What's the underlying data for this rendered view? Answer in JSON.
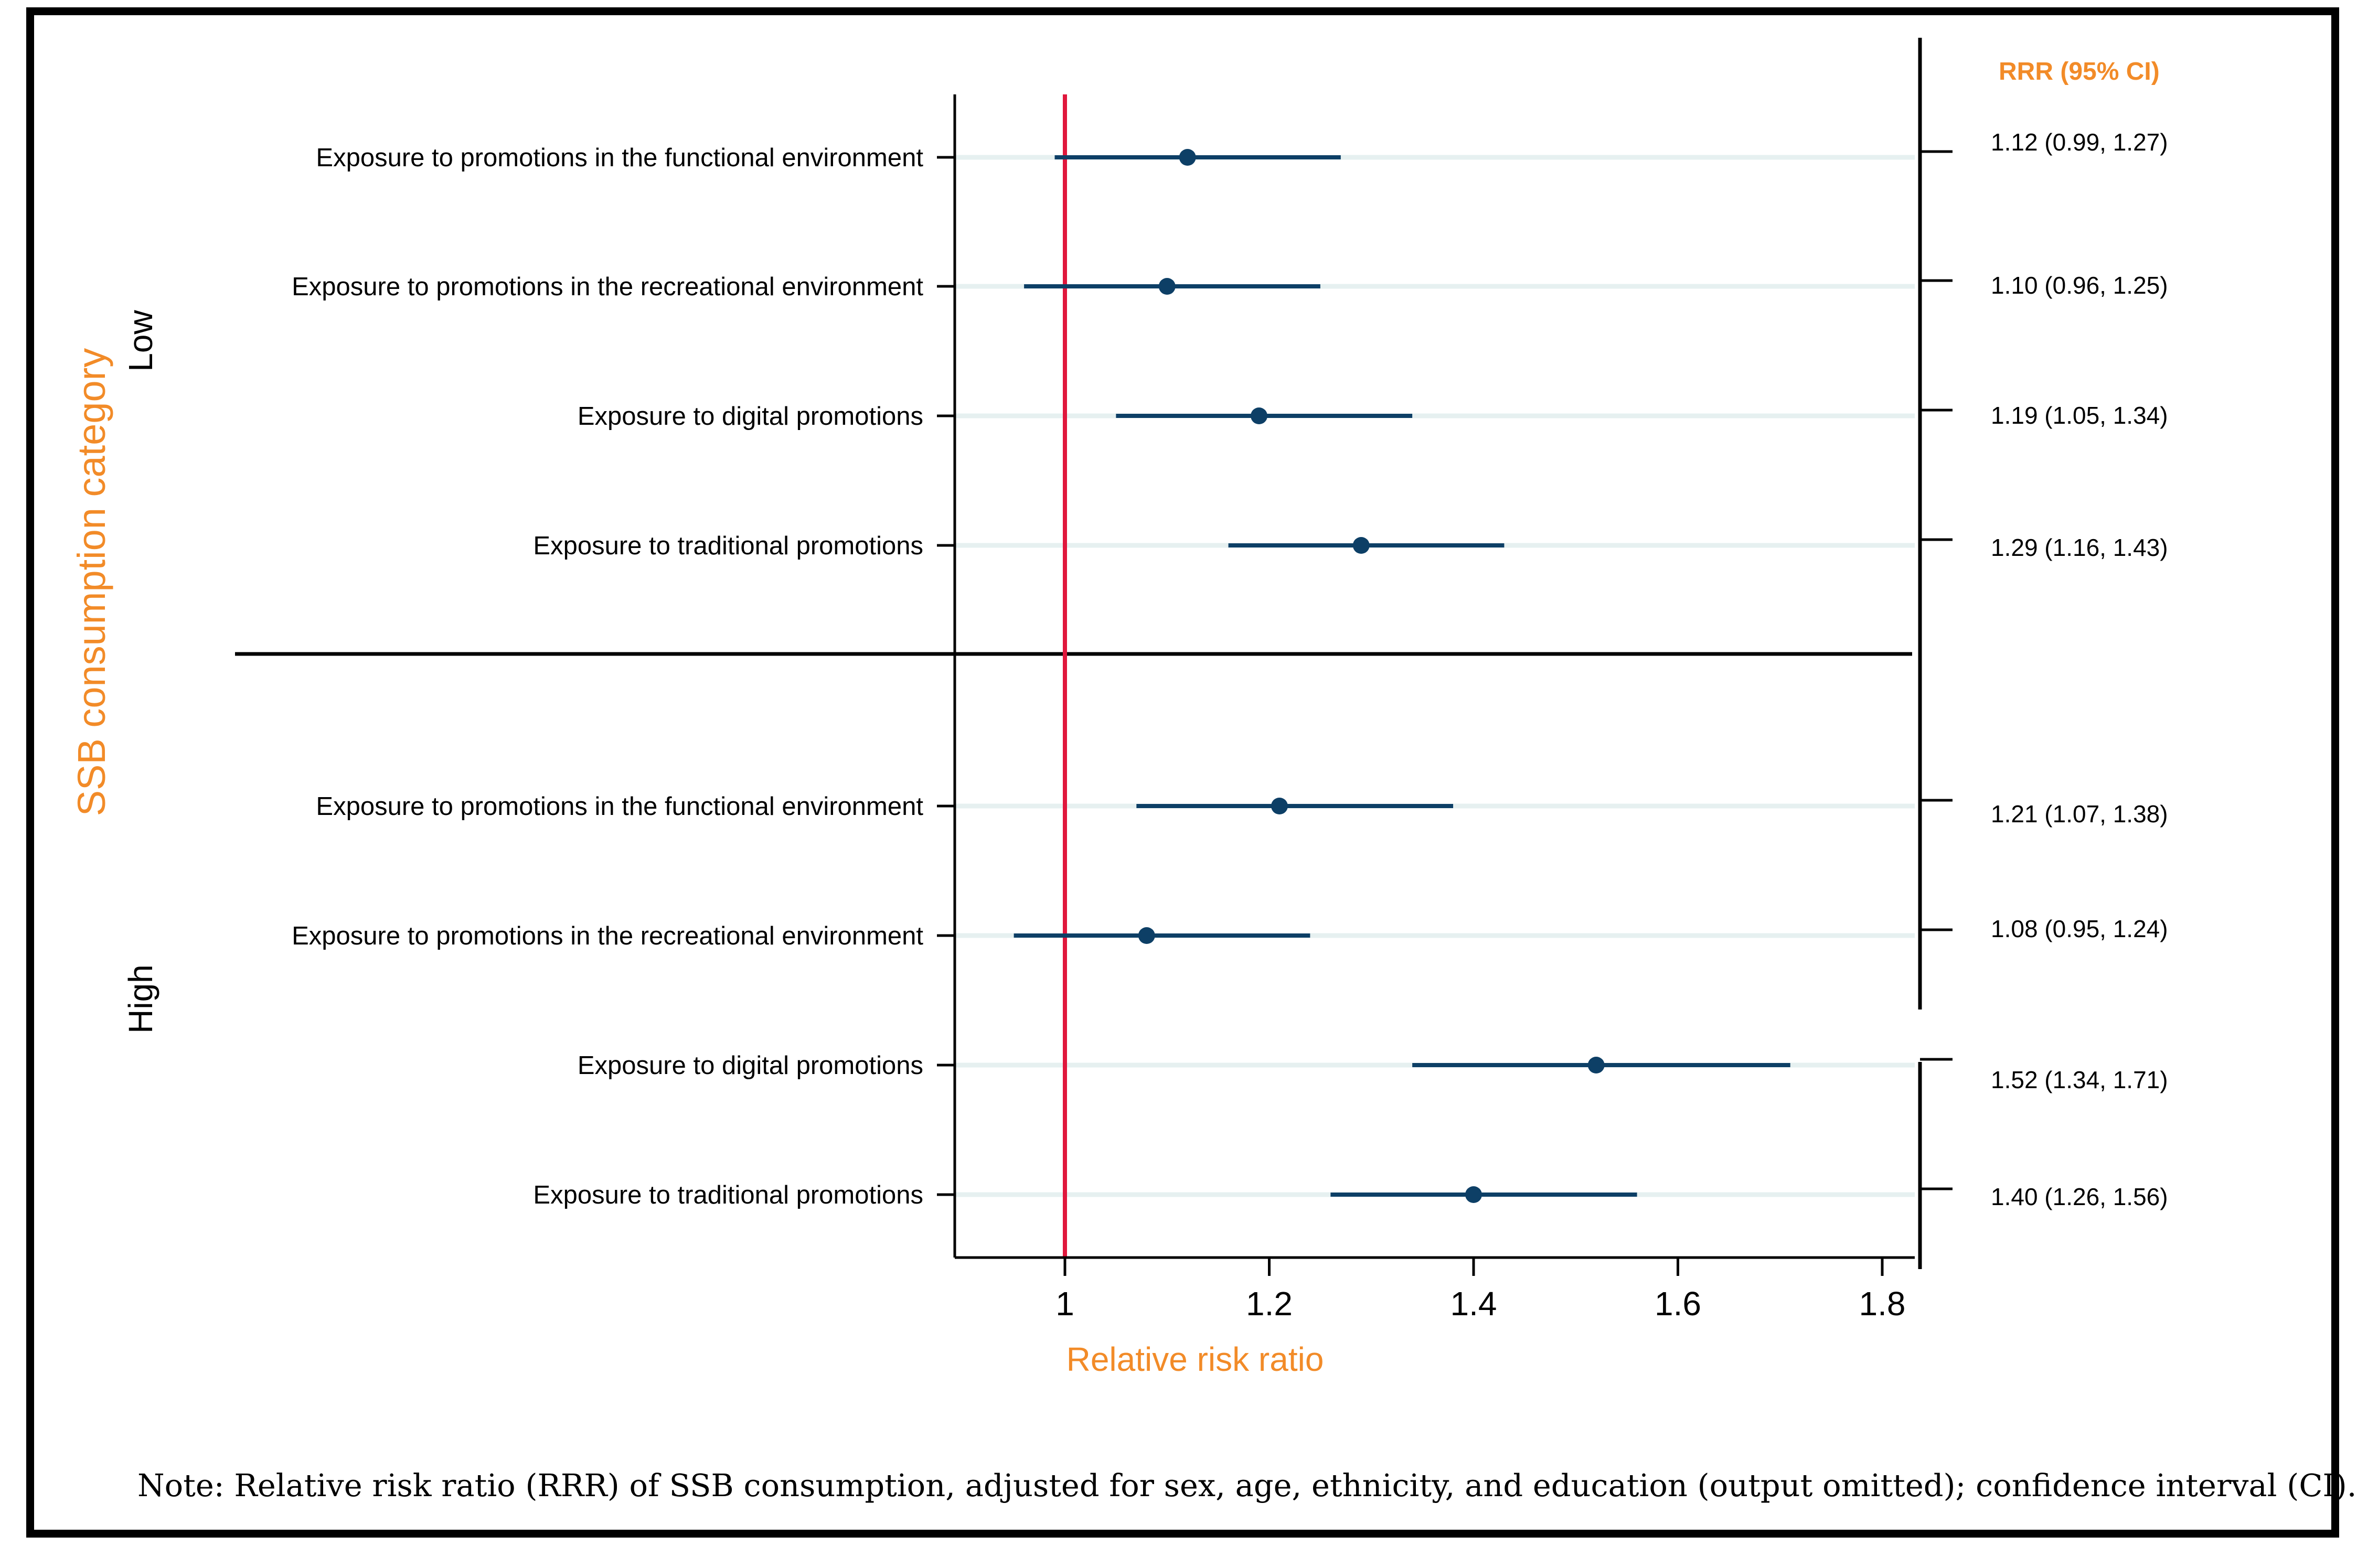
{
  "chart_data": {
    "type": "forest",
    "title": "",
    "xlabel": "Relative risk ratio",
    "ylabel": "SSB consumption category",
    "xlim": [
      0.915,
      1.83
    ],
    "xticks": [
      1,
      1.2,
      1.4,
      1.6,
      1.8
    ],
    "xtick_labels": [
      "1",
      "1.2",
      "1.4",
      "1.6",
      "1.8"
    ],
    "reference_line": 1,
    "right_column_header": "RRR (95% CI)",
    "groups": [
      {
        "name": "Low",
        "rows": [
          {
            "label": "Exposure to promotions in the functional environment",
            "rrr": 1.12,
            "lo": 0.99,
            "hi": 1.27,
            "text": "1.12 (0.99, 1.27)"
          },
          {
            "label": "Exposure to promotions in the recreational environment",
            "rrr": 1.1,
            "lo": 0.96,
            "hi": 1.25,
            "text": "1.10 (0.96, 1.25)"
          },
          {
            "label": "Exposure to digital promotions",
            "rrr": 1.19,
            "lo": 1.05,
            "hi": 1.34,
            "text": "1.19 (1.05, 1.34)"
          },
          {
            "label": "Exposure to traditional promotions",
            "rrr": 1.29,
            "lo": 1.16,
            "hi": 1.43,
            "text": "1.29 (1.16, 1.43)"
          }
        ]
      },
      {
        "name": "High",
        "rows": [
          {
            "label": "Exposure to promotions in the functional environment",
            "rrr": 1.21,
            "lo": 1.07,
            "hi": 1.38,
            "text": "1.21 (1.07, 1.38)"
          },
          {
            "label": "Exposure to promotions in the recreational environment",
            "rrr": 1.08,
            "lo": 0.95,
            "hi": 1.24,
            "text": "1.08 (0.95, 1.24)"
          },
          {
            "label": "Exposure to digital promotions",
            "rrr": 1.52,
            "lo": 1.34,
            "hi": 1.71,
            "text": "1.52 (1.34, 1.71)"
          },
          {
            "label": "Exposure to traditional promotions",
            "rrr": 1.4,
            "lo": 1.26,
            "hi": 1.56,
            "text": "1.40 (1.26, 1.56)"
          }
        ]
      }
    ],
    "colors": {
      "point": "#0d3f66",
      "ci": "#0d3f66",
      "reference": "#e0173c",
      "guide": "#e6f0f0",
      "label_accent": "#f28b28"
    }
  },
  "note": "Note: Relative risk ratio (RRR) of SSB consumption, adjusted for sex, age, ethnicity, and education (output omitted); confidence interval (CI)."
}
